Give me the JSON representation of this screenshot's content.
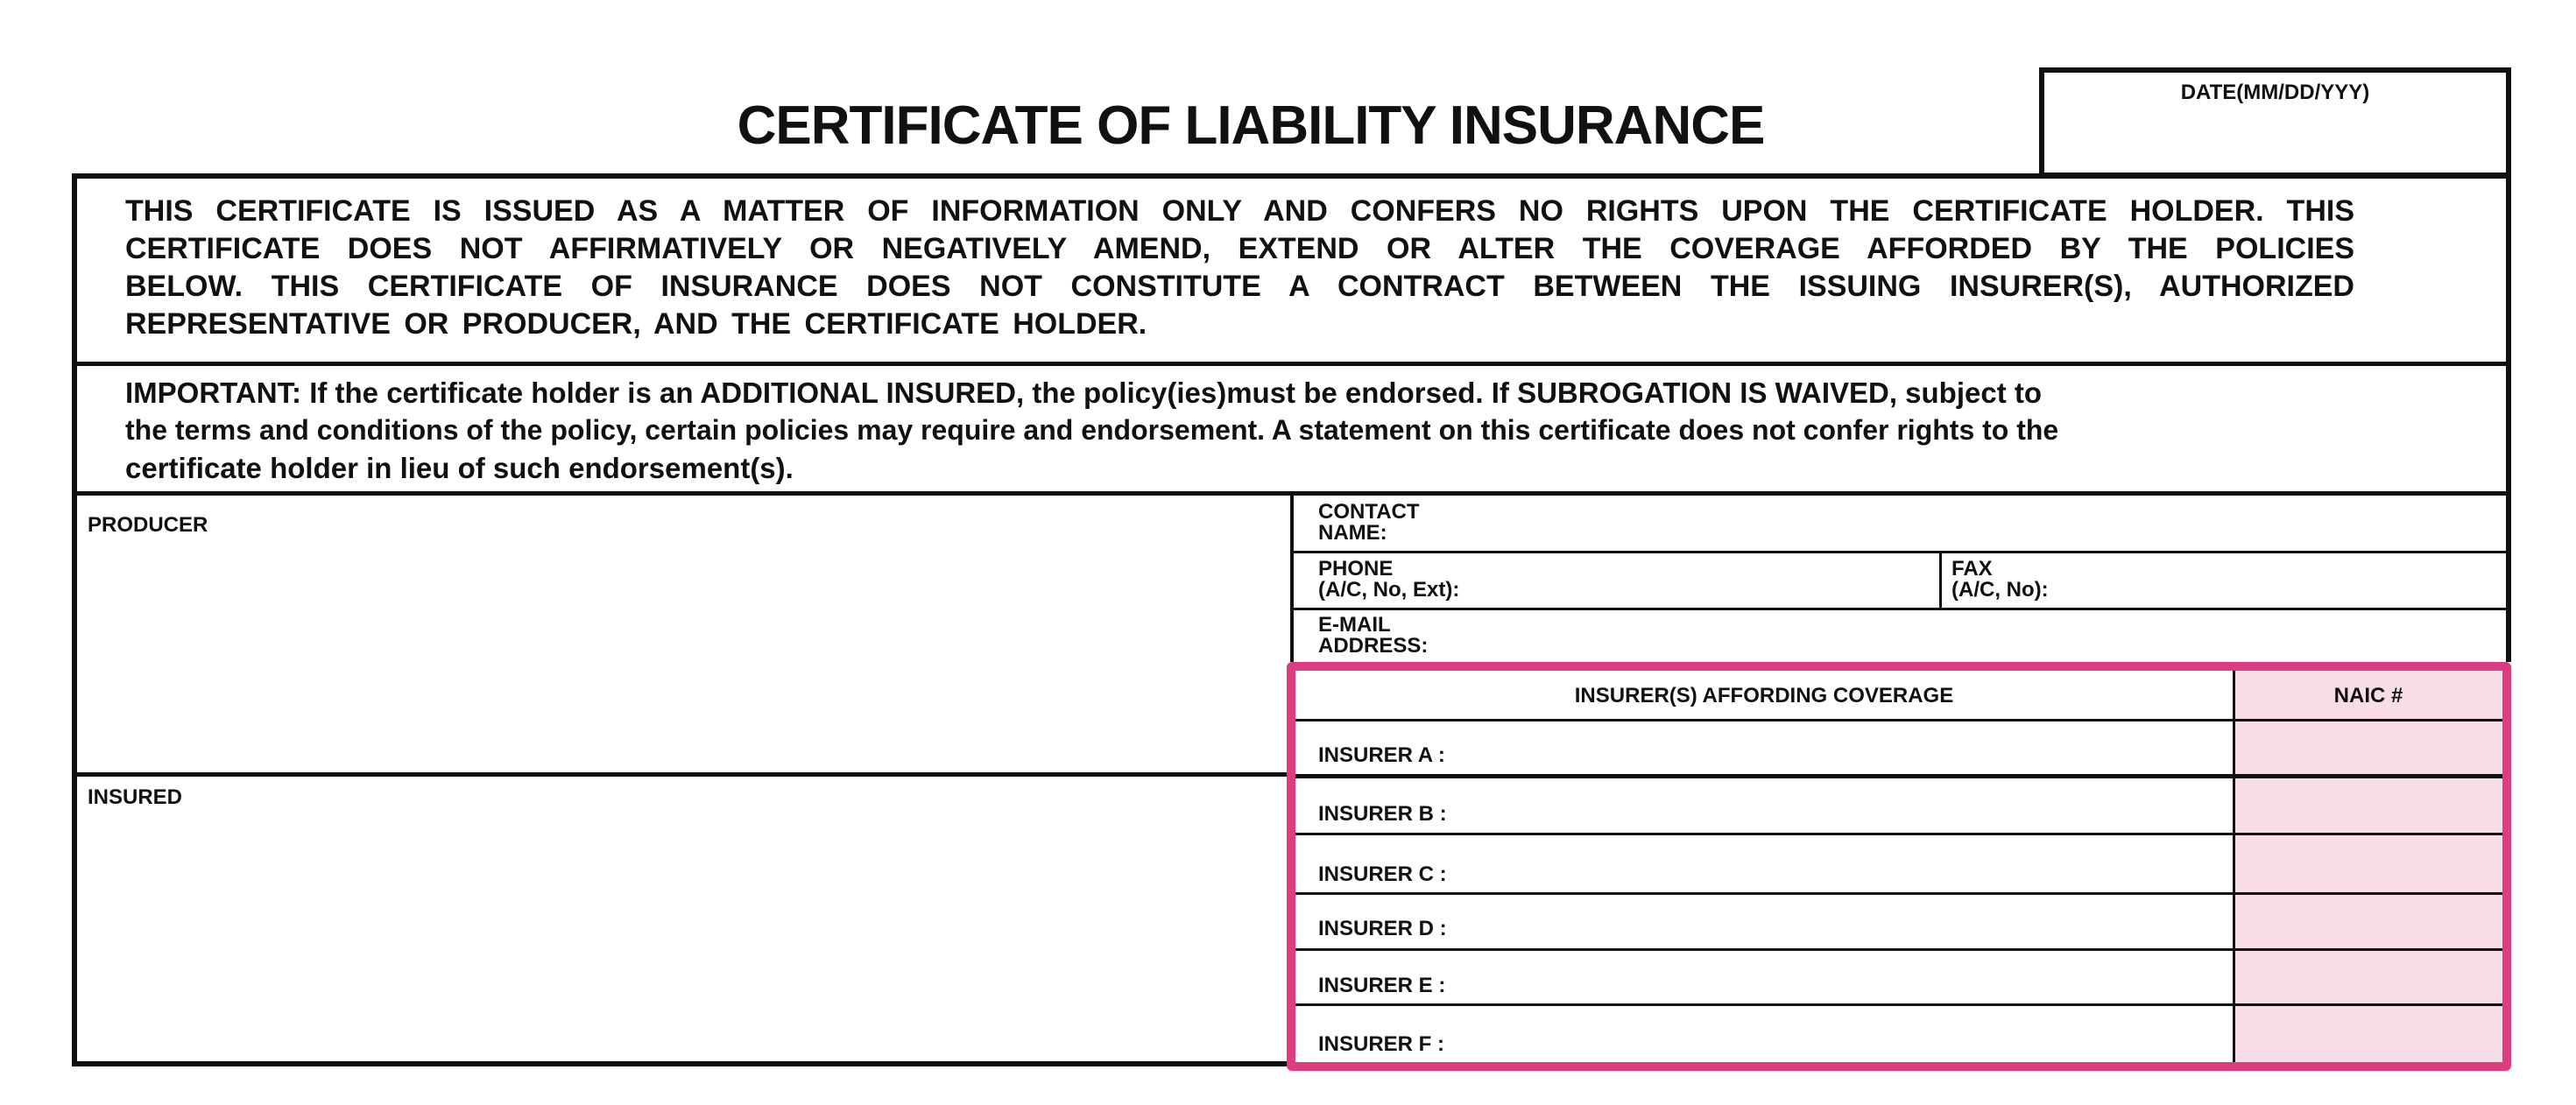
{
  "title": "CERTIFICATE OF LIABILITY INSURANCE",
  "date_label": "DATE(MM/DD/YYY)",
  "disclaimer_lines": [
    "THIS CERTIFICATE IS ISSUED AS A MATTER OF INFORMATION ONLY AND CONFERS NO RIGHTS UPON THE CERTIFICATE HOLDER. THIS",
    "CERTIFICATE DOES NOT AFFIRMATIVELY OR NEGATIVELY AMEND, EXTEND OR ALTER THE COVERAGE AFFORDED BY THE POLICIES",
    "BELOW. THIS CERTIFICATE OF INSURANCE DOES NOT CONSTITUTE A CONTRACT BETWEEN THE ISSUING INSURER(S), AUTHORIZED",
    "REPRESENTATIVE OR PRODUCER, AND THE CERTIFICATE HOLDER."
  ],
  "important_lines": [
    "IMPORTANT: If the certificate holder is an ADDITIONAL INSURED, the policy(ies)must be endorsed. If SUBROGATION IS WAIVED, subject to",
    "the terms and conditions of the policy, certain policies may require and endorsement. A statement on this certificate does not confer rights to the",
    "certificate holder in lieu of such endorsement(s)."
  ],
  "producer_label": "PRODUCER",
  "insured_label": "INSURED",
  "contact": {
    "line1": "CONTACT",
    "line2": "NAME:"
  },
  "phone": {
    "line1": "PHONE",
    "line2": "(A/C, No, Ext):"
  },
  "fax": {
    "line1": "FAX",
    "line2": "(A/C, No):"
  },
  "email": {
    "line1": "E-MAIL",
    "line2": "ADDRESS:"
  },
  "insurers": {
    "header": "INSURER(S) AFFORDING COVERAGE",
    "naic_header": "NAIC #",
    "rows": [
      "INSURER A :",
      "INSURER B :",
      "INSURER C :",
      "INSURER D :",
      "INSURER E :",
      "INSURER F :"
    ]
  },
  "colors": {
    "highlight_border": "#dc3d80",
    "naic_fill": "#f8dce7"
  }
}
